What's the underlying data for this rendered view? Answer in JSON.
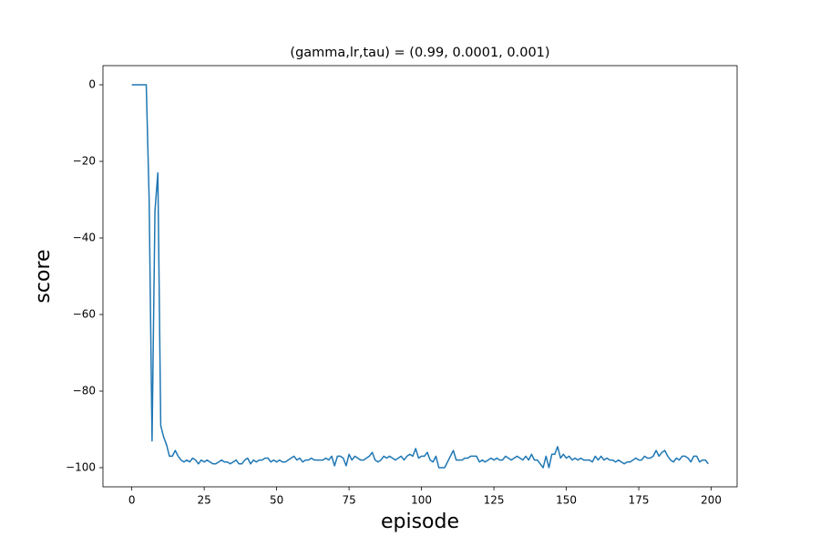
{
  "chart_data": {
    "type": "line",
    "title": "(gamma,lr,tau) = (0.99, 0.0001, 0.001)",
    "x_label": "episode",
    "y_label": "score",
    "x": [
      0,
      1,
      2,
      3,
      4,
      5,
      6,
      7,
      8,
      9,
      10,
      11,
      12,
      13,
      14,
      15,
      16,
      17,
      18,
      19,
      20,
      21,
      22,
      23,
      24,
      25,
      26,
      27,
      28,
      29,
      30,
      31,
      32,
      33,
      34,
      35,
      36,
      37,
      38,
      39,
      40,
      41,
      42,
      43,
      44,
      45,
      46,
      47,
      48,
      49,
      50,
      51,
      52,
      53,
      54,
      55,
      56,
      57,
      58,
      59,
      60,
      61,
      62,
      63,
      64,
      65,
      66,
      67,
      68,
      69,
      70,
      71,
      72,
      73,
      74,
      75,
      76,
      77,
      78,
      79,
      80,
      81,
      82,
      83,
      84,
      85,
      86,
      87,
      88,
      89,
      90,
      91,
      92,
      93,
      94,
      95,
      96,
      97,
      98,
      99,
      100,
      101,
      102,
      103,
      104,
      105,
      106,
      107,
      108,
      109,
      110,
      111,
      112,
      113,
      114,
      115,
      116,
      117,
      118,
      119,
      120,
      121,
      122,
      123,
      124,
      125,
      126,
      127,
      128,
      129,
      130,
      131,
      132,
      133,
      134,
      135,
      136,
      137,
      138,
      139,
      140,
      141,
      142,
      143,
      144,
      145,
      146,
      147,
      148,
      149,
      150,
      151,
      152,
      153,
      154,
      155,
      156,
      157,
      158,
      159,
      160,
      161,
      162,
      163,
      164,
      165,
      166,
      167,
      168,
      169,
      170,
      171,
      172,
      173,
      174,
      175,
      176,
      177,
      178,
      179,
      180,
      181,
      182,
      183,
      184,
      185,
      186,
      187,
      188,
      189,
      190,
      191,
      192,
      193,
      194,
      195,
      196,
      197,
      198,
      199
    ],
    "series": [
      {
        "name": "score",
        "color": "#1f77b4",
        "values": [
          0,
          0,
          0,
          0,
          0,
          0,
          -30,
          -93,
          -33,
          -23,
          -89,
          -92,
          -94,
          -97,
          -97,
          -95.5,
          -97,
          -98,
          -98.5,
          -98,
          -98.5,
          -97.5,
          -98,
          -99,
          -98,
          -98.5,
          -98,
          -98.5,
          -99,
          -99,
          -98.5,
          -98,
          -98.5,
          -98.5,
          -99,
          -98.5,
          -98,
          -99,
          -99,
          -98,
          -97.5,
          -99,
          -98,
          -98.5,
          -98,
          -98,
          -97.5,
          -97.5,
          -98.5,
          -98,
          -98.5,
          -98,
          -98.5,
          -98.5,
          -98,
          -97.5,
          -97,
          -98,
          -97.5,
          -98.5,
          -98,
          -98,
          -97.5,
          -98,
          -98,
          -98,
          -98,
          -97.5,
          -98,
          -97,
          -99.5,
          -97,
          -97,
          -97.5,
          -99.5,
          -96.5,
          -98,
          -97,
          -97.5,
          -98,
          -98,
          -97.5,
          -97,
          -96,
          -98,
          -98.5,
          -98,
          -97,
          -97.5,
          -97,
          -97.5,
          -98,
          -97.5,
          -97,
          -98,
          -97,
          -96.5,
          -97,
          -95,
          -97.5,
          -97,
          -97,
          -96,
          -98,
          -98.5,
          -97,
          -100,
          -100,
          -100,
          -98.5,
          -97,
          -95.5,
          -98,
          -98,
          -98,
          -97.5,
          -97.5,
          -97,
          -97,
          -97,
          -98.5,
          -98,
          -98.5,
          -98,
          -97.5,
          -98,
          -97.5,
          -98,
          -98,
          -97,
          -97.5,
          -98,
          -97.5,
          -97,
          -97.5,
          -98,
          -97,
          -98,
          -96.5,
          -98,
          -98,
          -99,
          -100,
          -97,
          -100,
          -96.5,
          -96.5,
          -94.5,
          -97.5,
          -96.5,
          -97.5,
          -97,
          -98,
          -97.5,
          -98,
          -97.5,
          -98,
          -98,
          -98,
          -98.5,
          -97,
          -98,
          -97,
          -98,
          -97.5,
          -98,
          -98,
          -98.5,
          -98,
          -98.5,
          -99,
          -98.5,
          -98.5,
          -98,
          -97.5,
          -98,
          -98,
          -97,
          -97.5,
          -97.5,
          -97,
          -95.5,
          -97,
          -96,
          -95.5,
          -97,
          -98,
          -98.5,
          -97.5,
          -98,
          -97,
          -97,
          -97.5,
          -98.5,
          -97,
          -97,
          -98.5,
          -98,
          -98,
          -99
        ]
      }
    ],
    "xlim": [
      -9.95,
      208.95
    ],
    "ylim": [
      -105,
      5
    ],
    "xticks": [
      0,
      25,
      50,
      75,
      100,
      125,
      150,
      175,
      200
    ],
    "yticks": [
      0,
      {
        "value": -20,
        "label": "−20"
      },
      {
        "value": -40,
        "label": "−40"
      },
      {
        "value": -60,
        "label": "−60"
      },
      {
        "value": -80,
        "label": "−80"
      },
      {
        "value": -100,
        "label": "−100"
      }
    ],
    "grid": false
  }
}
